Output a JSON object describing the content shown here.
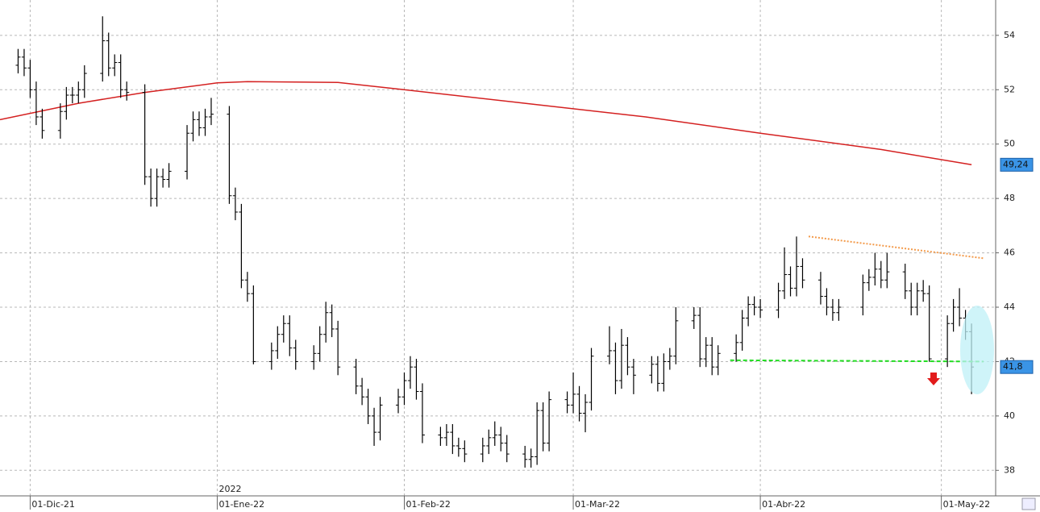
{
  "chart_data": {
    "type": "ohlc",
    "x": [
      "2021-11-29",
      "2021-11-30",
      "2021-12-01",
      "2021-12-02",
      "2021-12-03",
      "2021-12-06",
      "2021-12-07",
      "2021-12-08",
      "2021-12-09",
      "2021-12-10",
      "2021-12-13",
      "2021-12-14",
      "2021-12-15",
      "2021-12-16",
      "2021-12-17",
      "2021-12-20",
      "2021-12-21",
      "2021-12-22",
      "2021-12-23",
      "2021-12-24",
      "2021-12-27",
      "2021-12-28",
      "2021-12-29",
      "2021-12-30",
      "2021-12-31",
      "2022-01-03",
      "2022-01-04",
      "2022-01-05",
      "2022-01-06",
      "2022-01-07",
      "2022-01-10",
      "2022-01-11",
      "2022-01-12",
      "2022-01-13",
      "2022-01-14",
      "2022-01-17",
      "2022-01-18",
      "2022-01-19",
      "2022-01-20",
      "2022-01-21",
      "2022-01-24",
      "2022-01-25",
      "2022-01-26",
      "2022-01-27",
      "2022-01-28",
      "2022-01-31",
      "2022-02-01",
      "2022-02-02",
      "2022-02-03",
      "2022-02-04",
      "2022-02-07",
      "2022-02-08",
      "2022-02-09",
      "2022-02-10",
      "2022-02-11",
      "2022-02-14",
      "2022-02-15",
      "2022-02-16",
      "2022-02-17",
      "2022-02-18",
      "2022-02-21",
      "2022-02-22",
      "2022-02-23",
      "2022-02-24",
      "2022-02-25",
      "2022-02-28",
      "2022-03-01",
      "2022-03-02",
      "2022-03-03",
      "2022-03-04",
      "2022-03-07",
      "2022-03-08",
      "2022-03-09",
      "2022-03-10",
      "2022-03-11",
      "2022-03-14",
      "2022-03-15",
      "2022-03-16",
      "2022-03-17",
      "2022-03-18",
      "2022-03-21",
      "2022-03-22",
      "2022-03-23",
      "2022-03-24",
      "2022-03-25",
      "2022-03-28",
      "2022-03-29",
      "2022-03-30",
      "2022-03-31",
      "2022-04-01",
      "2022-04-04",
      "2022-04-05",
      "2022-04-06",
      "2022-04-07",
      "2022-04-08",
      "2022-04-11",
      "2022-04-12",
      "2022-04-13",
      "2022-04-14",
      "2022-04-18",
      "2022-04-19",
      "2022-04-20",
      "2022-04-21",
      "2022-04-22",
      "2022-04-25",
      "2022-04-26",
      "2022-04-27",
      "2022-04-28",
      "2022-04-29",
      "2022-05-02",
      "2022-05-03",
      "2022-05-04",
      "2022-05-05",
      "2022-05-06"
    ],
    "open": [
      52.9,
      53.2,
      52.8,
      52.0,
      51.0,
      50.5,
      51.2,
      51.8,
      51.8,
      52.0,
      52.6,
      53.8,
      52.8,
      53.0,
      52.0,
      51.9,
      48.8,
      48.0,
      48.8,
      48.7,
      49.0,
      50.4,
      50.9,
      50.6,
      51.0,
      51.1,
      48.1,
      47.5,
      45.0,
      44.5,
      42.0,
      42.4,
      43.0,
      43.4,
      42.5,
      42.0,
      42.3,
      43.0,
      43.8,
      43.2,
      41.8,
      41.1,
      40.7,
      40.0,
      39.4,
      40.4,
      40.7,
      41.3,
      41.8,
      40.9,
      39.3,
      39.2,
      39.4,
      38.9,
      38.8,
      38.6,
      38.9,
      39.2,
      39.3,
      39.0,
      38.6,
      38.4,
      38.5,
      40.2,
      39.0,
      40.6,
      40.4,
      40.8,
      40.1,
      40.5,
      42.2,
      42.4,
      41.3,
      42.6,
      41.8,
      41.5,
      41.9,
      41.2,
      42.0,
      42.2,
      43.5,
      43.7,
      42.1,
      42.6,
      41.8,
      42.3,
      42.7,
      43.6,
      44.1,
      44.0,
      43.9,
      44.6,
      45.2,
      44.7,
      45.5,
      45.0,
      44.4,
      44.0,
      43.8,
      44.0,
      44.9,
      45.1,
      45.4,
      45.0,
      45.3,
      44.6,
      44.0,
      44.6,
      44.5,
      42.1,
      43.4,
      44.0,
      43.6,
      43.1
    ],
    "high": [
      53.5,
      53.5,
      53.1,
      52.3,
      51.3,
      51.5,
      52.1,
      52.1,
      52.3,
      52.9,
      54.7,
      54.1,
      53.3,
      53.3,
      52.3,
      52.2,
      49.1,
      49.1,
      49.1,
      49.3,
      50.7,
      51.2,
      51.2,
      51.3,
      51.7,
      51.4,
      48.4,
      47.8,
      45.3,
      44.8,
      42.7,
      43.3,
      43.7,
      43.7,
      42.8,
      42.6,
      43.3,
      44.2,
      44.1,
      43.5,
      42.1,
      41.4,
      41.0,
      40.3,
      40.7,
      41.0,
      41.6,
      42.2,
      42.1,
      41.2,
      39.6,
      39.7,
      39.7,
      39.2,
      39.1,
      39.2,
      39.5,
      39.8,
      39.6,
      39.3,
      38.9,
      38.8,
      40.5,
      40.5,
      40.9,
      40.9,
      41.6,
      41.1,
      40.8,
      42.5,
      43.3,
      42.7,
      43.2,
      42.9,
      42.1,
      42.2,
      42.2,
      42.3,
      42.5,
      44.0,
      44.0,
      44.0,
      42.9,
      42.9,
      42.6,
      43.0,
      43.9,
      44.4,
      44.4,
      44.3,
      44.9,
      46.2,
      45.5,
      46.6,
      45.8,
      45.3,
      44.7,
      44.3,
      44.3,
      45.2,
      45.4,
      46.0,
      45.7,
      46.0,
      45.6,
      44.9,
      44.9,
      45.0,
      44.8,
      43.7,
      44.3,
      44.7,
      43.9,
      43.4
    ],
    "low": [
      52.6,
      52.5,
      51.7,
      50.7,
      50.2,
      50.2,
      50.9,
      51.5,
      51.5,
      51.7,
      52.3,
      52.5,
      52.5,
      51.7,
      51.6,
      48.5,
      47.7,
      47.7,
      48.4,
      48.4,
      48.7,
      50.1,
      50.3,
      50.3,
      50.7,
      47.8,
      47.2,
      44.7,
      44.2,
      41.9,
      41.7,
      42.1,
      42.7,
      42.2,
      41.7,
      41.7,
      42.0,
      42.7,
      42.9,
      41.5,
      40.8,
      40.4,
      39.7,
      38.9,
      39.1,
      40.1,
      40.4,
      41.0,
      40.6,
      39.0,
      38.9,
      38.9,
      38.6,
      38.5,
      38.3,
      38.3,
      38.6,
      38.9,
      38.7,
      38.3,
      38.1,
      38.1,
      38.2,
      38.7,
      38.7,
      40.1,
      40.1,
      39.8,
      39.4,
      40.2,
      41.9,
      40.8,
      41.0,
      41.5,
      40.8,
      41.2,
      40.9,
      40.9,
      41.7,
      41.9,
      43.2,
      41.8,
      41.8,
      41.5,
      41.5,
      42.0,
      42.4,
      43.3,
      43.7,
      43.6,
      43.6,
      44.3,
      44.4,
      44.4,
      44.7,
      44.1,
      43.7,
      43.5,
      43.5,
      43.7,
      44.6,
      44.8,
      44.7,
      44.7,
      44.3,
      43.7,
      43.7,
      44.2,
      42.0,
      41.8,
      43.1,
      43.3,
      42.8,
      40.8
    ],
    "close": [
      53.2,
      52.8,
      52.0,
      51.0,
      50.5,
      51.2,
      51.8,
      51.8,
      52.0,
      52.6,
      53.8,
      52.8,
      53.0,
      52.0,
      51.9,
      48.8,
      48.0,
      48.8,
      48.7,
      49.0,
      50.4,
      50.9,
      50.6,
      51.0,
      51.1,
      48.1,
      47.5,
      45.0,
      44.5,
      42.0,
      42.4,
      43.0,
      43.4,
      42.5,
      42.0,
      42.3,
      43.0,
      43.8,
      43.2,
      41.8,
      41.1,
      40.7,
      40.0,
      39.4,
      40.4,
      40.7,
      41.3,
      41.8,
      40.9,
      39.3,
      39.2,
      39.4,
      38.9,
      38.8,
      38.6,
      38.9,
      39.2,
      39.3,
      39.0,
      38.6,
      38.4,
      38.5,
      40.2,
      39.0,
      40.6,
      40.4,
      40.8,
      40.1,
      40.5,
      42.2,
      42.4,
      41.3,
      42.6,
      41.8,
      41.5,
      41.9,
      41.2,
      42.0,
      42.2,
      43.5,
      43.7,
      42.1,
      42.6,
      41.8,
      42.3,
      42.7,
      43.6,
      44.1,
      44.0,
      43.9,
      44.6,
      45.2,
      44.7,
      45.5,
      45.0,
      44.4,
      44.0,
      43.8,
      44.0,
      44.9,
      45.1,
      45.4,
      45.0,
      45.3,
      44.6,
      44.0,
      44.6,
      44.5,
      42.1,
      43.4,
      44.0,
      43.6,
      43.1,
      41.8
    ],
    "color": "#000000",
    "moving_average": {
      "x": [
        "2021-11-26",
        "2021-12-09",
        "2021-12-20",
        "2022-01-01",
        "2022-01-06",
        "2022-01-21",
        "2022-02-01",
        "2022-02-21",
        "2022-03-13",
        "2022-04-01",
        "2022-04-21",
        "2022-05-06"
      ],
      "values": [
        50.9,
        51.5,
        51.9,
        52.25,
        52.3,
        52.27,
        52.0,
        51.5,
        51.0,
        50.4,
        49.8,
        49.24
      ],
      "color": "#d42020"
    },
    "trendlines": [
      {
        "x": [
          "2022-04-09",
          "2022-05-08"
        ],
        "values": [
          46.6,
          45.8
        ],
        "color": "#f39a4a",
        "style": "dotted"
      },
      {
        "x": [
          "2022-03-27",
          "2022-05-08"
        ],
        "values": [
          42.05,
          42.0
        ],
        "color": "#22dd22",
        "style": "dashed"
      }
    ],
    "price_markers": [
      {
        "value": 49.24,
        "label": "49,24"
      },
      {
        "value": 41.8,
        "label": "41,8"
      }
    ],
    "year_label": "2022",
    "xlim": [
      "2021-11-26",
      "2022-05-10"
    ],
    "xticks": [
      {
        "value": "2021-12-01",
        "label": "01-Dic-21"
      },
      {
        "value": "2022-01-01",
        "label": "01-Ene-22"
      },
      {
        "value": "2022-02-01",
        "label": "01-Feb-22"
      },
      {
        "value": "2022-03-01",
        "label": "01-Mar-22"
      },
      {
        "value": "2022-04-01",
        "label": "01-Abr-22"
      },
      {
        "value": "2022-05-01",
        "label": "01-May-22"
      }
    ],
    "ylim": [
      37.06,
      55.3
    ],
    "yticks": [
      38,
      40,
      42,
      44,
      46,
      48,
      50,
      52,
      54
    ],
    "grid": true
  }
}
